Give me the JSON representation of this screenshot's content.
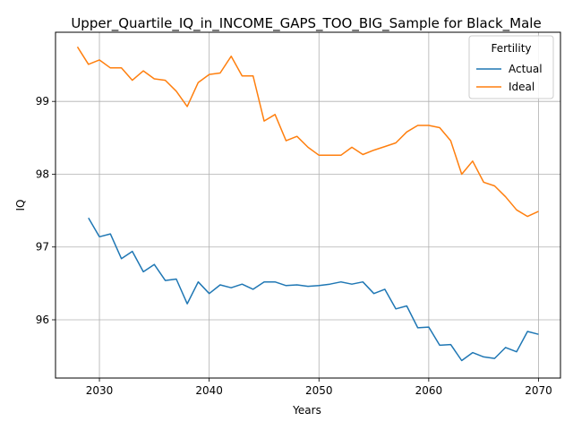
{
  "chart_data": {
    "type": "line",
    "title": "Upper_Quartile_IQ_in_INCOME_GAPS_TOO_BIG_Sample for Black_Male",
    "xlabel": "Years",
    "ylabel": "IQ",
    "xlim": [
      2026,
      2072
    ],
    "ylim": [
      95.2,
      99.95
    ],
    "xticks": [
      2030,
      2040,
      2050,
      2060,
      2070
    ],
    "yticks": [
      96,
      97,
      98,
      99
    ],
    "grid": true,
    "legend": {
      "title": "Fertility",
      "placement": "top-right"
    },
    "series": [
      {
        "name": "Actual",
        "color": "#1f77b4",
        "x": [
          2029,
          2030,
          2031,
          2032,
          2033,
          2034,
          2035,
          2036,
          2037,
          2038,
          2039,
          2040,
          2041,
          2042,
          2043,
          2044,
          2045,
          2046,
          2047,
          2048,
          2049,
          2050,
          2051,
          2052,
          2053,
          2054,
          2055,
          2056,
          2057,
          2058,
          2059,
          2060,
          2061,
          2062,
          2063,
          2064,
          2065,
          2066,
          2067,
          2068,
          2069,
          2070
        ],
        "values": [
          97.4,
          97.14,
          97.18,
          96.84,
          96.94,
          96.66,
          96.76,
          96.54,
          96.56,
          96.22,
          96.52,
          96.36,
          96.48,
          96.44,
          96.49,
          96.42,
          96.52,
          96.52,
          96.47,
          96.48,
          96.46,
          96.47,
          96.49,
          96.52,
          96.49,
          96.52,
          96.36,
          96.42,
          96.15,
          96.19,
          95.89,
          95.9,
          95.65,
          95.66,
          95.44,
          95.55,
          95.49,
          95.47,
          95.62,
          95.56,
          95.84,
          95.8
        ]
      },
      {
        "name": "Ideal",
        "color": "#ff7f0e",
        "x": [
          2028,
          2029,
          2030,
          2031,
          2032,
          2033,
          2034,
          2035,
          2036,
          2037,
          2038,
          2039,
          2040,
          2041,
          2042,
          2043,
          2044,
          2045,
          2046,
          2047,
          2048,
          2049,
          2050,
          2051,
          2052,
          2053,
          2054,
          2055,
          2056,
          2057,
          2058,
          2059,
          2060,
          2061,
          2062,
          2063,
          2064,
          2065,
          2066,
          2067,
          2068,
          2069,
          2070
        ],
        "values": [
          99.75,
          99.51,
          99.57,
          99.46,
          99.46,
          99.29,
          99.42,
          99.31,
          99.29,
          99.14,
          98.93,
          99.26,
          99.37,
          99.39,
          99.62,
          99.35,
          99.35,
          98.73,
          98.82,
          98.46,
          98.52,
          98.37,
          98.26,
          98.26,
          98.26,
          98.37,
          98.27,
          98.33,
          98.38,
          98.43,
          98.58,
          98.67,
          98.67,
          98.64,
          98.46,
          98.0,
          98.18,
          97.89,
          97.84,
          97.69,
          97.51,
          97.42,
          97.49
        ]
      }
    ]
  }
}
